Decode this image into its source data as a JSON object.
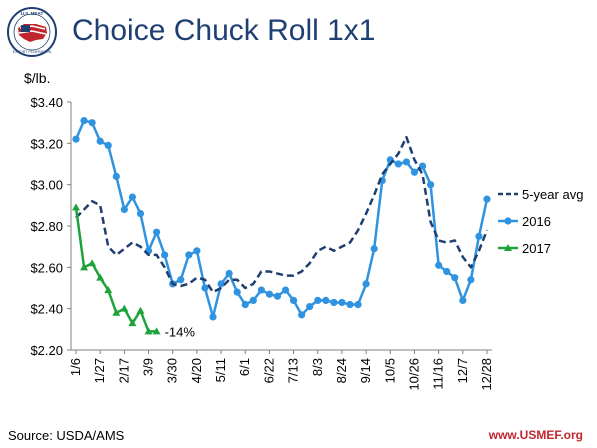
{
  "slide": {
    "title": "Choice Chuck Roll 1x1",
    "unit_label": "$/lb.",
    "source": "Source: USDA/AMS",
    "website": "www.USMEF.org",
    "logo_text": "U.S. MEAT EXPORT FEDERATION"
  },
  "chart_data": {
    "type": "line",
    "title": "Choice Chuck Roll 1x1",
    "ylabel": "$/lb.",
    "xlabel": "",
    "ylim": [
      2.2,
      3.4
    ],
    "yticks": [
      2.2,
      2.4,
      2.6,
      2.8,
      3.0,
      3.2,
      3.4
    ],
    "ytick_labels": [
      "$2.20",
      "$2.40",
      "$2.60",
      "$2.80",
      "$3.00",
      "$3.20",
      "$3.40"
    ],
    "x_tick_labels": [
      "1/6",
      "1/27",
      "2/17",
      "3/9",
      "3/30",
      "4/20",
      "5/11",
      "6/1",
      "6/22",
      "7/13",
      "8/3",
      "8/24",
      "9/14",
      "10/5",
      "10/26",
      "11/16",
      "12/7",
      "12/28"
    ],
    "x_tick_weeks": [
      0,
      3,
      6,
      9,
      12,
      15,
      18,
      21,
      24,
      27,
      30,
      33,
      36,
      39,
      42,
      45,
      48,
      51
    ],
    "weeks_total": 52,
    "legend_position": "right",
    "grid": false,
    "annotation": "-14%",
    "series": [
      {
        "name": "5-year avg",
        "style": "dashed",
        "color": "#1f3f73",
        "values": [
          2.84,
          2.88,
          2.92,
          2.9,
          2.7,
          2.66,
          2.69,
          2.72,
          2.7,
          2.66,
          2.66,
          2.6,
          2.52,
          2.51,
          2.52,
          2.55,
          2.54,
          2.48,
          2.5,
          2.54,
          2.54,
          2.5,
          2.52,
          2.58,
          2.58,
          2.57,
          2.56,
          2.56,
          2.58,
          2.62,
          2.68,
          2.7,
          2.68,
          2.7,
          2.72,
          2.78,
          2.86,
          2.95,
          3.05,
          3.1,
          3.15,
          3.23,
          3.12,
          3.05,
          2.82,
          2.73,
          2.72,
          2.73,
          2.65,
          2.6,
          2.68,
          2.78
        ]
      },
      {
        "name": "2016",
        "style": "solid-markers",
        "color": "#2f93e0",
        "values": [
          3.22,
          3.31,
          3.3,
          3.21,
          3.19,
          3.04,
          2.88,
          2.94,
          2.86,
          2.68,
          2.77,
          2.66,
          2.52,
          2.54,
          2.66,
          2.68,
          2.5,
          2.36,
          2.52,
          2.57,
          2.48,
          2.42,
          2.44,
          2.49,
          2.47,
          2.46,
          2.49,
          2.44,
          2.37,
          2.41,
          2.44,
          2.44,
          2.43,
          2.43,
          2.42,
          2.42,
          2.52,
          2.69,
          3.02,
          3.12,
          3.1,
          3.11,
          3.06,
          3.09,
          3.0,
          2.61,
          2.58,
          2.55,
          2.44,
          2.54,
          2.75,
          2.93
        ]
      },
      {
        "name": "2017",
        "style": "solid-markers",
        "color": "#1ea33a",
        "values": [
          2.89,
          2.6,
          2.62,
          2.55,
          2.49,
          2.38,
          2.4,
          2.33,
          2.39,
          2.29,
          2.29
        ]
      }
    ]
  }
}
